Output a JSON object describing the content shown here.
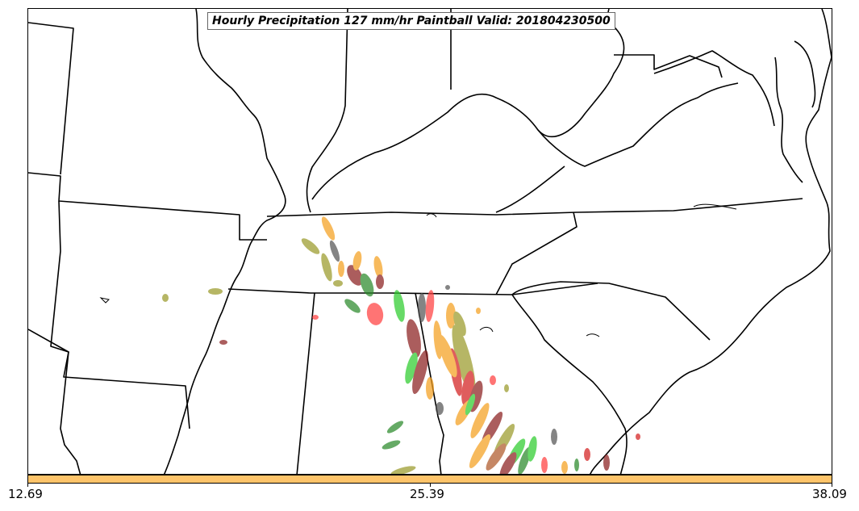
{
  "title": "Hourly Precipitation 127 mm/hr Paintball Valid: 201804230500",
  "colors": {
    "colorbar_fill": "#fec46a",
    "borders": "#000000",
    "paintball_members": [
      "#d42020",
      "#2a8a2a",
      "#f5a020",
      "#8b2020",
      "#9a9a2a",
      "#555555",
      "#2ecc2e",
      "#ff4040",
      "#7a9a2a",
      "#b05a2a"
    ]
  },
  "colorbar": {
    "ticks": [
      "12.69",
      "25.39",
      "38.09"
    ]
  },
  "map_region": "Southeastern United States"
}
